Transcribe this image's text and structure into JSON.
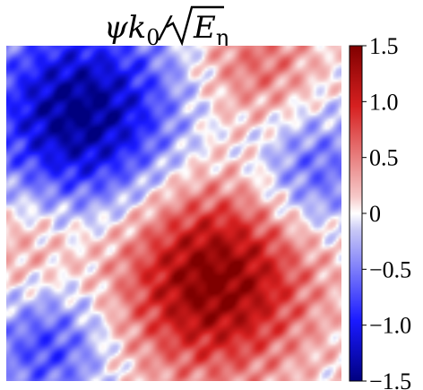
{
  "chart_data": {
    "type": "heatmap",
    "title": "ψk₀/√E_η",
    "title_parts": {
      "psi": "ψk",
      "k_sub": "0",
      "slash": "/",
      "E": "E",
      "eta_sub": "η"
    },
    "colorbar": {
      "range": [
        -1.5,
        1.5
      ],
      "ticks": [
        1.5,
        1.0,
        0.5,
        0,
        -0.5,
        -1.0,
        -1.5
      ],
      "tick_labels": [
        "1.5",
        "1.0",
        "0.5",
        "0",
        "−0.5",
        "−1.0",
        "−1.5"
      ],
      "colormap": "seismic",
      "colors": {
        "low": "#00008b",
        "mid": "#ffffff",
        "high": "#8b0000"
      }
    },
    "field": {
      "features": [
        {
          "kind": "minimum",
          "cx": 0.22,
          "cy": 0.2,
          "value": -1.5
        },
        {
          "kind": "maximum",
          "cx": 0.62,
          "cy": 0.7,
          "value": 1.5
        },
        {
          "kind": "maximum",
          "cx": 0.75,
          "cy": 0.05,
          "value": 0.6
        },
        {
          "kind": "minimum",
          "cx": 0.92,
          "cy": 0.38,
          "value": -0.7
        },
        {
          "kind": "minimum",
          "cx": 0.12,
          "cy": 0.9,
          "value": -0.8
        },
        {
          "kind": "maximum",
          "cx": 0.05,
          "cy": 0.6,
          "value": 0.4
        }
      ]
    }
  }
}
